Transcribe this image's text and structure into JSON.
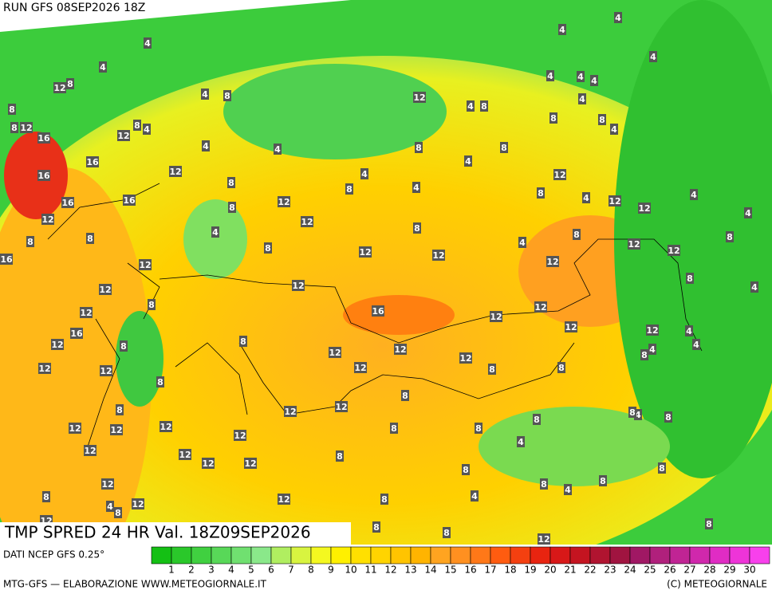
{
  "header": {
    "run": "RUN GFS 08SEP2026 18Z"
  },
  "map": {
    "title": "TMP SPRED 24 HR Val. 18Z09SEP2026",
    "labels": [
      4,
      12,
      8,
      8,
      4,
      8,
      12,
      8,
      16,
      12,
      8,
      4,
      16,
      12,
      16,
      8,
      16,
      16,
      12,
      12,
      8,
      12,
      4,
      8,
      8,
      16,
      8,
      12,
      12,
      12,
      8,
      4,
      8,
      8,
      12,
      8,
      4,
      12,
      12,
      8,
      4,
      12,
      12,
      12,
      8,
      12,
      12,
      8,
      12,
      16,
      12,
      12,
      12,
      16,
      12,
      8,
      8,
      12,
      12,
      12,
      12,
      12,
      12,
      12,
      8,
      8,
      8,
      8,
      8,
      12,
      12,
      12,
      12,
      12,
      12,
      8,
      8,
      8,
      8,
      12,
      12,
      12,
      12,
      8,
      4,
      12,
      8,
      8,
      8,
      8,
      12,
      12,
      8,
      4,
      4,
      4,
      8,
      8,
      12,
      8,
      12,
      8,
      8,
      4,
      4,
      4,
      4,
      4,
      4,
      8,
      4,
      8,
      4,
      4,
      8,
      4,
      4,
      4,
      8,
      4,
      12,
      4,
      8,
      4,
      8,
      4,
      4,
      4,
      4,
      4,
      4,
      8
    ]
  },
  "footer": {
    "source": "DATI NCEP GFS 0.25°",
    "credit": "MTG-GFS — ELABORAZIONE WWW.METEOGIORNALE.IT",
    "copyright": "(C) METEOGIORNALE"
  },
  "colorbar": {
    "labels": [
      1,
      2,
      3,
      4,
      5,
      6,
      7,
      8,
      9,
      10,
      11,
      12,
      13,
      14,
      15,
      16,
      17,
      18,
      19,
      20,
      21,
      22,
      23,
      24,
      25,
      26,
      27,
      28,
      29,
      30
    ],
    "colors": [
      "#14c014",
      "#2ac82a",
      "#40d040",
      "#58d858",
      "#70e070",
      "#8ae88a",
      "#b0ee60",
      "#d8f440",
      "#f4f820",
      "#fff000",
      "#ffe000",
      "#ffd400",
      "#ffc400",
      "#ffb400",
      "#ffa420",
      "#ff9020",
      "#ff7818",
      "#ff5c10",
      "#f44010",
      "#e82410",
      "#d81818",
      "#c41420",
      "#b01430",
      "#a01440",
      "#a01864",
      "#b0207c",
      "#c02494",
      "#d028ac",
      "#e02cc4",
      "#ee34d8",
      "#f840ec"
    ]
  }
}
